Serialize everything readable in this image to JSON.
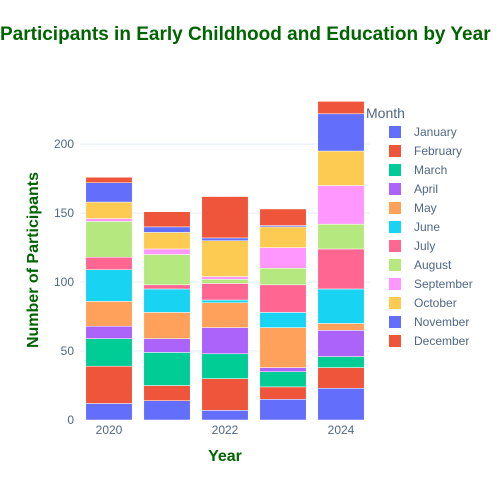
{
  "chart_data": {
    "type": "bar",
    "barmode": "stack",
    "title": "Participants in Early Childhood and Education by Year",
    "xlabel": "Year",
    "ylabel": "Number of Participants",
    "legend_title": "Month",
    "legend_position": "right",
    "grid": true,
    "ylim": [
      0,
      232
    ],
    "yticks": [
      0,
      50,
      100,
      150,
      200
    ],
    "x": [
      2020,
      2021,
      2022,
      2023,
      2024
    ],
    "xticks": [
      2020,
      2022,
      2024
    ],
    "series": [
      {
        "name": "January",
        "color": "#636efa",
        "values": [
          12,
          14,
          7,
          15,
          23
        ]
      },
      {
        "name": "February",
        "color": "#ef553b",
        "values": [
          27,
          11,
          23,
          9,
          15
        ]
      },
      {
        "name": "March",
        "color": "#00cc96",
        "values": [
          20,
          24,
          18,
          11,
          8
        ]
      },
      {
        "name": "April",
        "color": "#ab63fa",
        "values": [
          9,
          10,
          19,
          3,
          19
        ]
      },
      {
        "name": "May",
        "color": "#ffa15a",
        "values": [
          18,
          19,
          18,
          29,
          5
        ]
      },
      {
        "name": "June",
        "color": "#19d3f3",
        "values": [
          23,
          17,
          2,
          11,
          25
        ]
      },
      {
        "name": "July",
        "color": "#ff6692",
        "values": [
          9,
          3,
          12,
          20,
          29
        ]
      },
      {
        "name": "August",
        "color": "#b6e880",
        "values": [
          26,
          22,
          3,
          12,
          18
        ]
      },
      {
        "name": "September",
        "color": "#ff97ff",
        "values": [
          2,
          4,
          2,
          15,
          28
        ]
      },
      {
        "name": "October",
        "color": "#fecb52",
        "values": [
          12,
          12,
          26,
          15,
          25
        ]
      },
      {
        "name": "November",
        "color": "#636efa",
        "values": [
          14,
          4,
          2,
          1,
          27
        ]
      },
      {
        "name": "December",
        "color": "#ef553b",
        "values": [
          4,
          11,
          30,
          12,
          9
        ]
      }
    ]
  }
}
